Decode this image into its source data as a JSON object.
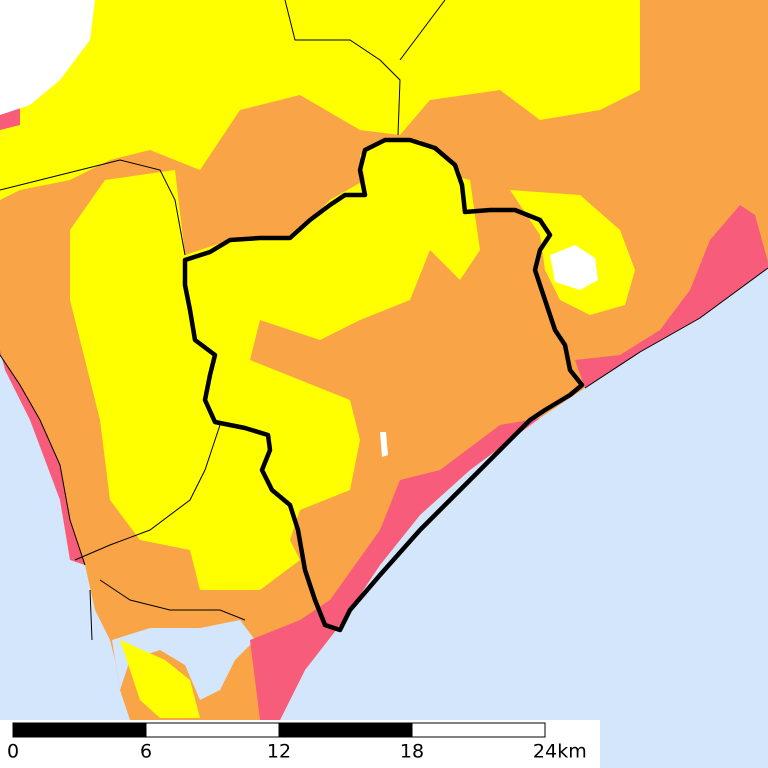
{
  "scale": {
    "ticks": [
      0,
      6,
      12,
      18,
      24
    ],
    "unit": "km"
  }
}
